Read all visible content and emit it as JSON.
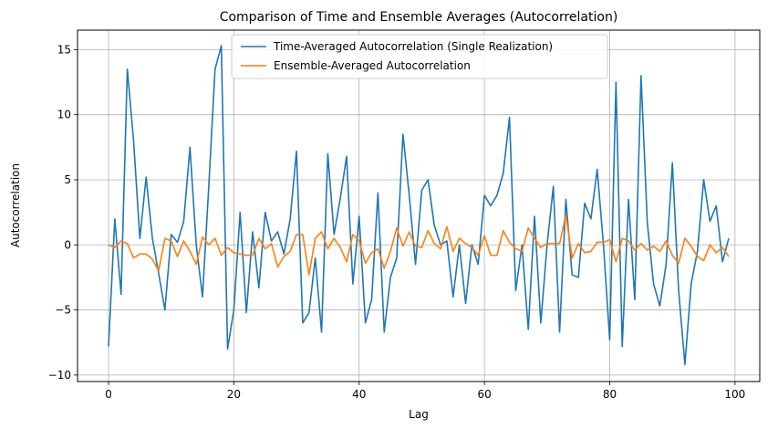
{
  "chart_data": {
    "type": "line",
    "title": "Comparison of Time and Ensemble Averages (Autocorrelation)",
    "xlabel": "Lag",
    "ylabel": "Autocorrelation",
    "xlim": [
      -4.95,
      103.95
    ],
    "ylim": [
      -10.5,
      16.5
    ],
    "xticks": [
      0,
      20,
      40,
      60,
      80,
      100
    ],
    "yticks": [
      -10,
      -5,
      0,
      5,
      10,
      15
    ],
    "grid": true,
    "legend_position": "upper-center",
    "series": [
      {
        "name": "Time-Averaged Autocorrelation (Single Realization)",
        "color": "#1f77b4",
        "x": [
          0,
          1,
          2,
          3,
          4,
          5,
          6,
          7,
          8,
          9,
          10,
          11,
          12,
          13,
          14,
          15,
          16,
          17,
          18,
          19,
          20,
          21,
          22,
          23,
          24,
          25,
          26,
          27,
          28,
          29,
          30,
          31,
          32,
          33,
          34,
          35,
          36,
          37,
          38,
          39,
          40,
          41,
          42,
          43,
          44,
          45,
          46,
          47,
          48,
          49,
          50,
          51,
          52,
          53,
          54,
          55,
          56,
          57,
          58,
          59,
          60,
          61,
          62,
          63,
          64,
          65,
          66,
          67,
          68,
          69,
          70,
          71,
          72,
          73,
          74,
          75,
          76,
          77,
          78,
          79,
          80,
          81,
          82,
          83,
          84,
          85,
          86,
          87,
          88,
          89,
          90,
          91,
          92,
          93,
          94,
          95,
          96,
          97,
          98,
          99
        ],
        "values": [
          -7.8,
          2.0,
          -3.8,
          13.5,
          8.0,
          0.5,
          5.2,
          0.5,
          -2.2,
          -5.0,
          0.8,
          0.2,
          1.8,
          7.5,
          0.0,
          -4.0,
          4.5,
          13.5,
          15.3,
          -8.0,
          -5.0,
          2.5,
          -5.2,
          1.0,
          -3.3,
          2.5,
          0.3,
          1.0,
          -0.7,
          2.0,
          7.2,
          -6.0,
          -5.2,
          -1.0,
          -6.7,
          7.0,
          0.8,
          3.6,
          6.8,
          -3.0,
          2.2,
          -6.0,
          -4.2,
          4.0,
          -6.7,
          -2.5,
          -1.0,
          8.5,
          3.8,
          -1.5,
          4.2,
          5.0,
          1.5,
          0.0,
          0.3,
          -4.0,
          0.0,
          -4.5,
          0.0,
          -1.5,
          3.8,
          3.0,
          3.8,
          5.5,
          9.8,
          -3.5,
          0.0,
          -6.5,
          2.2,
          -6.0,
          0.0,
          4.5,
          -6.7,
          3.5,
          -2.3,
          -2.5,
          3.2,
          2.0,
          5.8,
          0.0,
          -7.3,
          12.5,
          -7.8,
          3.5,
          -4.2,
          13.0,
          1.7,
          -3.0,
          -4.7,
          -1.5,
          6.3,
          -3.5,
          -9.2,
          -3.0,
          -0.5,
          5.0,
          1.8,
          3.0,
          -1.3,
          0.5
        ]
      },
      {
        "name": "Ensemble-Averaged Autocorrelation",
        "color": "#ff7f0e",
        "x": [
          0,
          1,
          2,
          3,
          4,
          5,
          6,
          7,
          8,
          9,
          10,
          11,
          12,
          13,
          14,
          15,
          16,
          17,
          18,
          19,
          20,
          21,
          22,
          23,
          24,
          25,
          26,
          27,
          28,
          29,
          30,
          31,
          32,
          33,
          34,
          35,
          36,
          37,
          38,
          39,
          40,
          41,
          42,
          43,
          44,
          45,
          46,
          47,
          48,
          49,
          50,
          51,
          52,
          53,
          54,
          55,
          56,
          57,
          58,
          59,
          60,
          61,
          62,
          63,
          64,
          65,
          66,
          67,
          68,
          69,
          70,
          71,
          72,
          73,
          74,
          75,
          76,
          77,
          78,
          79,
          80,
          81,
          82,
          83,
          84,
          85,
          86,
          87,
          88,
          89,
          90,
          91,
          92,
          93,
          94,
          95,
          96,
          97,
          98,
          99
        ],
        "values": [
          0.0,
          -0.2,
          0.3,
          0.1,
          -1.0,
          -0.7,
          -0.7,
          -1.1,
          -2.0,
          0.5,
          0.3,
          -0.9,
          0.3,
          -0.5,
          -1.5,
          0.6,
          0.0,
          0.5,
          -0.8,
          -0.2,
          -0.6,
          -0.7,
          -0.8,
          -0.8,
          0.5,
          -0.3,
          0.1,
          -1.7,
          -0.9,
          -0.5,
          0.8,
          0.8,
          -2.3,
          0.5,
          1.0,
          -0.3,
          0.5,
          -0.2,
          -1.3,
          0.8,
          0.3,
          -1.4,
          -0.6,
          -0.3,
          -1.8,
          -0.5,
          1.3,
          -0.1,
          1.0,
          -0.1,
          -0.2,
          1.1,
          0.1,
          -0.3,
          1.4,
          -0.5,
          0.5,
          0.1,
          -0.2,
          -0.8,
          0.7,
          -0.8,
          -0.8,
          1.1,
          0.2,
          -0.3,
          -0.5,
          1.3,
          0.5,
          -0.2,
          0.1,
          0.1,
          0.1,
          2.3,
          -1.0,
          0.1,
          -0.6,
          -0.5,
          0.2,
          0.2,
          0.4,
          -1.3,
          0.5,
          0.3,
          -0.4,
          0.1,
          -0.4,
          -0.1,
          -0.5,
          0.3,
          -0.8,
          -1.4,
          0.5,
          -0.1,
          -0.9,
          -1.2,
          0.0,
          -0.6,
          -0.2,
          -0.9
        ]
      }
    ]
  }
}
